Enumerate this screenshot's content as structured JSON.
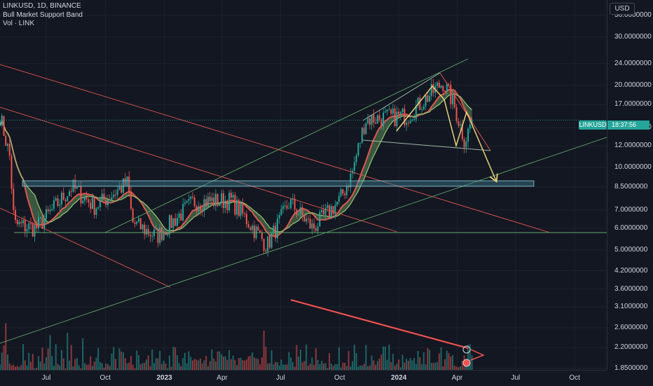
{
  "legend": {
    "symbol_line": "LINKUSD, 1D, BINANCE",
    "indicator_1": "Bull Market Support Band",
    "indicator_2": "Vol · LINK"
  },
  "price_axis": {
    "currency_button": "USD",
    "labels": [
      "36.0000000",
      "30.0000000",
      "24.0000000",
      "20.0000000",
      "17.0000000",
      "14.0000000",
      "12.0000000",
      "10.0000000",
      "8.5000000",
      "7.0000000",
      "6.0000000",
      "5.0000000",
      "4.2000000",
      "3.6000000",
      "3.1000000",
      "2.6000000",
      "2.2000000",
      "1.8500000"
    ]
  },
  "time_axis": {
    "labels": [
      {
        "text": "Jul",
        "bold": false
      },
      {
        "text": "Oct",
        "bold": false
      },
      {
        "text": "2023",
        "bold": true
      },
      {
        "text": "Apr",
        "bold": false
      },
      {
        "text": "Jul",
        "bold": false
      },
      {
        "text": "Oct",
        "bold": false
      },
      {
        "text": "2024",
        "bold": true
      },
      {
        "text": "Apr",
        "bold": false
      },
      {
        "text": "Jul",
        "bold": false
      },
      {
        "text": "Oct",
        "bold": false
      }
    ]
  },
  "current_price": {
    "symbol_badge": "LINKUSD",
    "tag": "18:37:56"
  },
  "colors": {
    "background": "#131722",
    "up": "#26a69a",
    "down": "#ef5350",
    "band_fill": "#5a8a5a",
    "ema_line": "#e0574f",
    "sma_line": "#8fbf6f",
    "channel_red": "#e0574f",
    "channel_green": "#5fa86a",
    "zone_fill": "#3b7a8a",
    "projection_arrow": "#e8d07a",
    "trendline_volume": "#ef5350"
  },
  "chart_data": {
    "type": "candlestick",
    "symbol": "LINKUSD",
    "timeframe": "1D",
    "exchange": "BINANCE",
    "price_scale": "log",
    "y_range": [
      1.7,
      40
    ],
    "x_range": [
      "2022-04-20",
      "2024-11-20"
    ],
    "price_path": [
      [
        "2022-04-20",
        15.5
      ],
      [
        "2022-05-05",
        11.0
      ],
      [
        "2022-05-12",
        6.2
      ],
      [
        "2022-06-15",
        6.0
      ],
      [
        "2022-07-01",
        6.6
      ],
      [
        "2022-08-10",
        8.5
      ],
      [
        "2022-09-15",
        7.2
      ],
      [
        "2022-11-05",
        8.8
      ],
      [
        "2022-11-12",
        6.3
      ],
      [
        "2022-12-20",
        5.6
      ],
      [
        "2023-02-15",
        7.5
      ],
      [
        "2023-04-15",
        7.6
      ],
      [
        "2023-06-10",
        5.2
      ],
      [
        "2023-07-15",
        7.5
      ],
      [
        "2023-08-20",
        6.0
      ],
      [
        "2023-10-01",
        7.6
      ],
      [
        "2023-10-20",
        9.5
      ],
      [
        "2023-11-10",
        15.0
      ],
      [
        "2024-01-15",
        15.5
      ],
      [
        "2024-03-10",
        20.5
      ],
      [
        "2024-03-25",
        17.5
      ],
      [
        "2024-04-13",
        12.5
      ],
      [
        "2024-04-25",
        15.2
      ]
    ],
    "indicators": [
      "Bull Market Support Band",
      "Vol · LINK"
    ],
    "horizontal_zone": [
      8.55,
      8.95
    ],
    "horizontal_support": 5.85,
    "projected_target": 8.9,
    "last_price": 14.9
  }
}
